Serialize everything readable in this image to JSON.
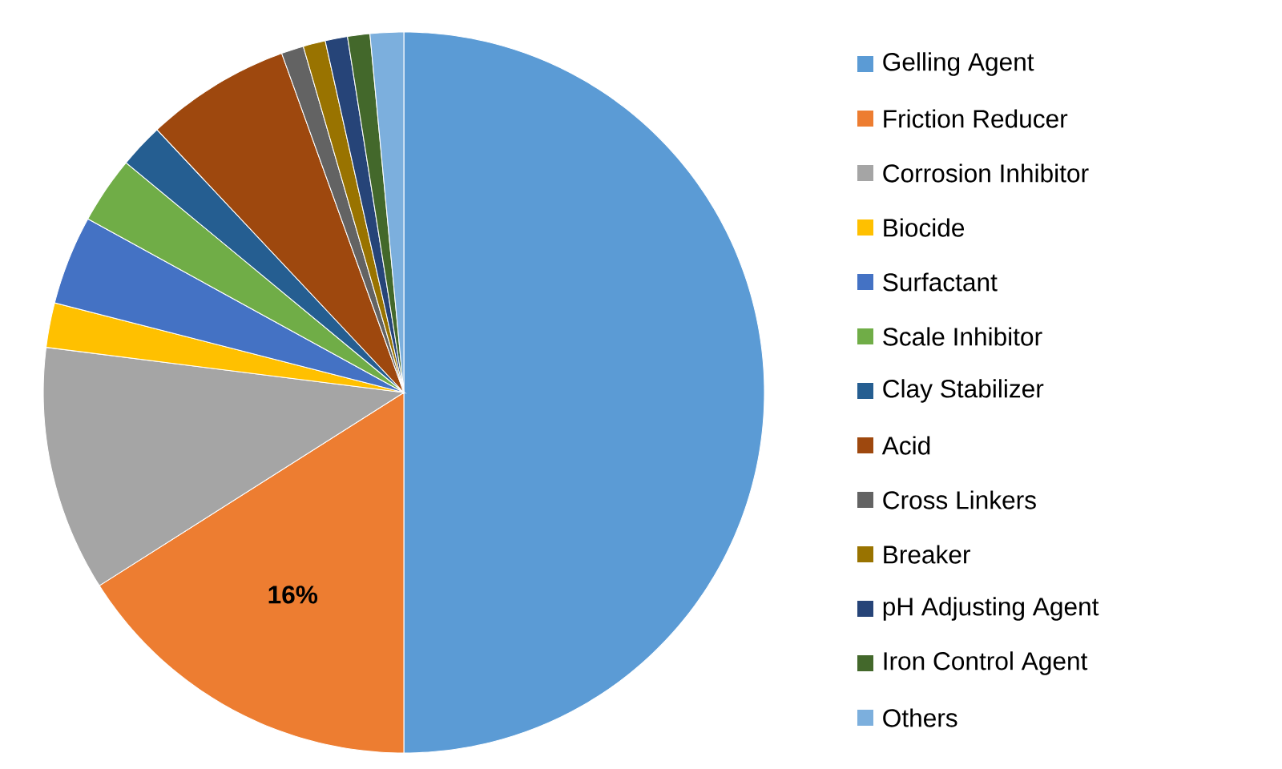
{
  "chart_data": {
    "type": "pie",
    "categories": [
      "Gelling Agent",
      "Friction Reducer",
      "Corrosion Inhibitor",
      "Biocide",
      "Surfactant",
      "Scale Inhibitor",
      "Clay Stabilizer",
      "Acid",
      "Cross Linkers",
      "Breaker",
      "pH Adjusting Agent",
      "Iron Control Agent",
      "Others"
    ],
    "values": [
      50,
      16,
      11,
      2,
      4,
      3,
      2,
      6.5,
      1,
      1,
      1,
      1,
      1.5
    ],
    "colors": [
      "#5b9bd5",
      "#ed7d31",
      "#a5a5a5",
      "#ffc000",
      "#4472c4",
      "#70ad47",
      "#255e91",
      "#9e480e",
      "#636363",
      "#997300",
      "#264478",
      "#43682b",
      "#7cafdd"
    ],
    "value_labels": [
      null,
      "16%",
      null,
      null,
      null,
      null,
      null,
      null,
      null,
      null,
      null,
      null,
      null
    ],
    "legend": "right"
  }
}
